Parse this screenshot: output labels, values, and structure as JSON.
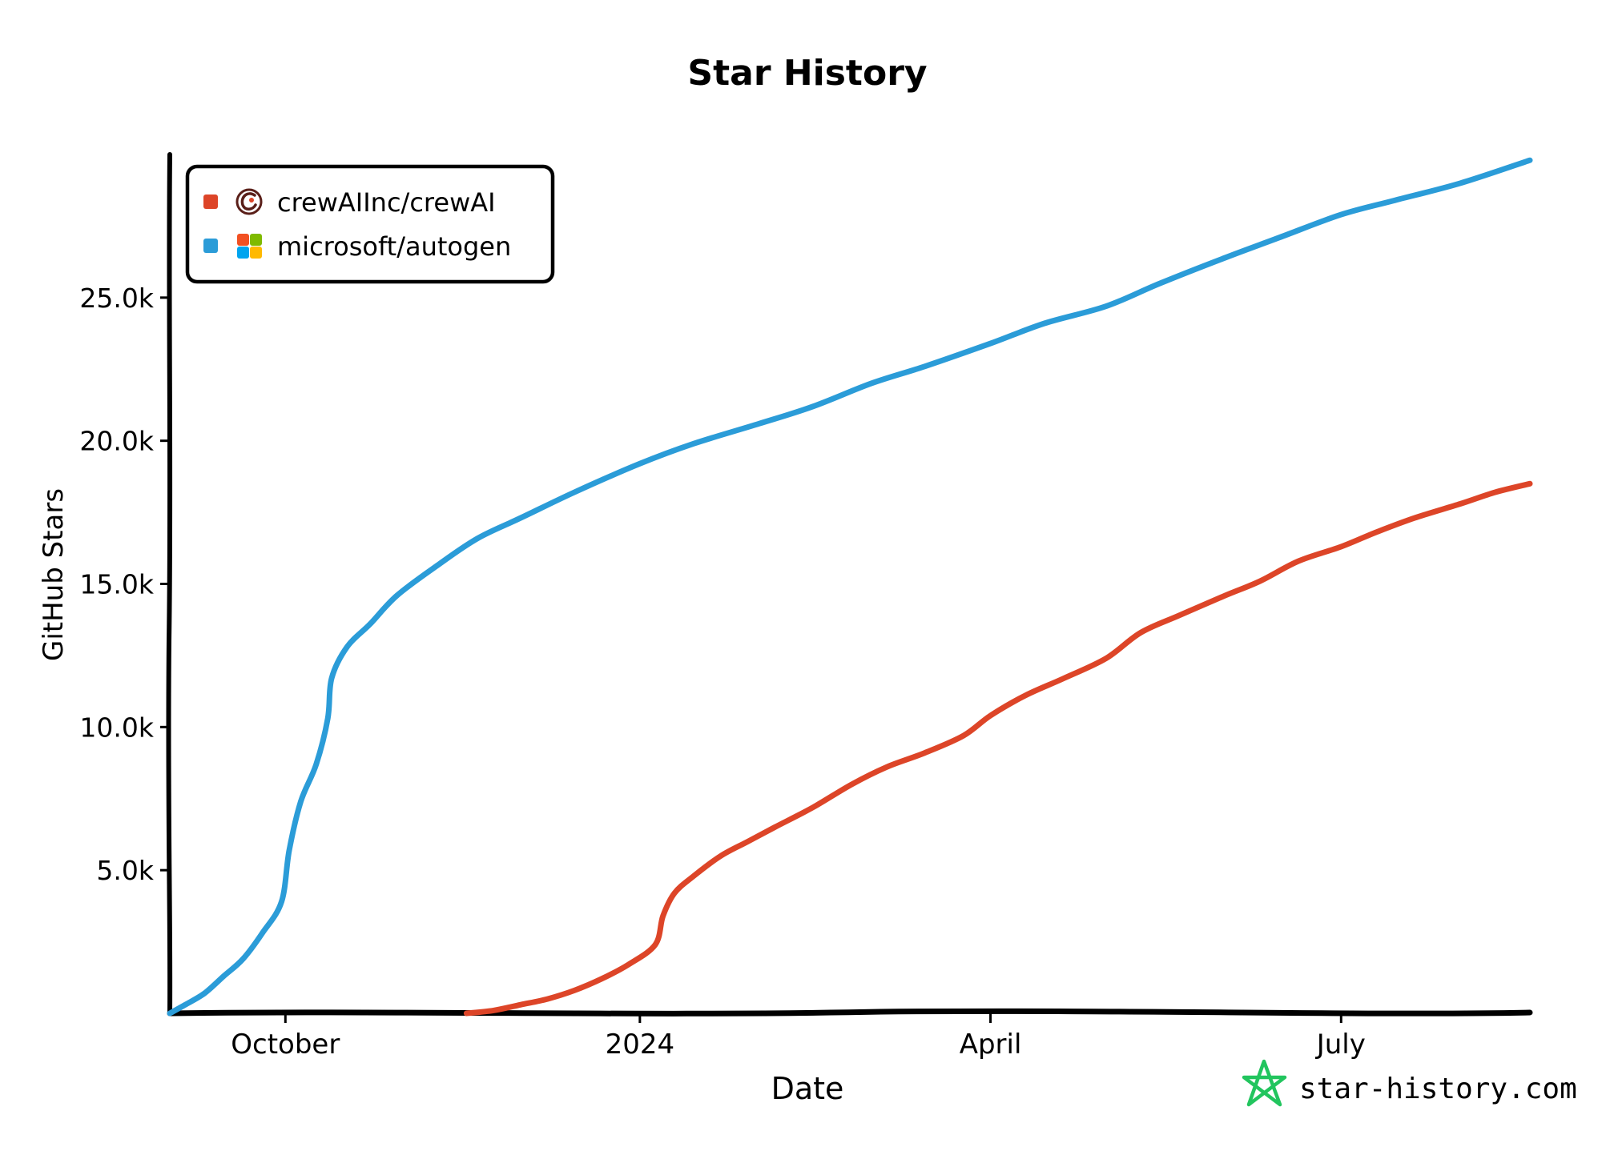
{
  "chart_data": {
    "type": "line",
    "title": "Star History",
    "xlabel": "Date",
    "ylabel": "GitHub Stars",
    "x_ticks": [
      "October",
      "2024",
      "April",
      "July"
    ],
    "x_tick_dates": [
      "2023-10-01",
      "2024-01-01",
      "2024-04-01",
      "2024-07-01"
    ],
    "y_ticks": [
      5000,
      10000,
      15000,
      20000,
      25000
    ],
    "y_tick_labels": [
      "5.0k",
      "10.0k",
      "15.0k",
      "20.0k",
      "25.0k"
    ],
    "xlim": [
      "2023-09-01",
      "2024-08-19"
    ],
    "ylim": [
      0,
      30000
    ],
    "legend_position": "top-left",
    "grid": false,
    "series": [
      {
        "name": "crewAIInc/crewAI",
        "color": "#dd4528",
        "icon": "crewai-logo-icon",
        "points": [
          [
            "2023-11-17",
            0
          ],
          [
            "2023-11-24",
            100
          ],
          [
            "2023-12-01",
            300
          ],
          [
            "2023-12-08",
            500
          ],
          [
            "2023-12-15",
            800
          ],
          [
            "2023-12-22",
            1200
          ],
          [
            "2023-12-29",
            1700
          ],
          [
            "2024-01-05",
            2400
          ],
          [
            "2024-01-07",
            3400
          ],
          [
            "2024-01-10",
            4200
          ],
          [
            "2024-01-15",
            4800
          ],
          [
            "2024-01-22",
            5500
          ],
          [
            "2024-01-29",
            6000
          ],
          [
            "2024-02-05",
            6500
          ],
          [
            "2024-02-15",
            7200
          ],
          [
            "2024-02-25",
            8000
          ],
          [
            "2024-03-05",
            8600
          ],
          [
            "2024-03-15",
            9100
          ],
          [
            "2024-03-25",
            9700
          ],
          [
            "2024-04-01",
            10400
          ],
          [
            "2024-04-10",
            11100
          ],
          [
            "2024-04-20",
            11700
          ],
          [
            "2024-05-01",
            12400
          ],
          [
            "2024-05-10",
            13300
          ],
          [
            "2024-05-20",
            13900
          ],
          [
            "2024-06-01",
            14600
          ],
          [
            "2024-06-10",
            15100
          ],
          [
            "2024-06-20",
            15800
          ],
          [
            "2024-07-01",
            16300
          ],
          [
            "2024-07-10",
            16800
          ],
          [
            "2024-07-20",
            17300
          ],
          [
            "2024-08-01",
            17800
          ],
          [
            "2024-08-10",
            18200
          ],
          [
            "2024-08-19",
            18500
          ]
        ]
      },
      {
        "name": "microsoft/autogen",
        "color": "#2b9cd8",
        "icon": "microsoft-logo-icon",
        "points": [
          [
            "2023-09-01",
            0
          ],
          [
            "2023-09-05",
            300
          ],
          [
            "2023-09-10",
            700
          ],
          [
            "2023-09-15",
            1300
          ],
          [
            "2023-09-20",
            1900
          ],
          [
            "2023-09-25",
            2800
          ],
          [
            "2023-09-30",
            3900
          ],
          [
            "2023-10-02",
            5700
          ],
          [
            "2023-10-05",
            7400
          ],
          [
            "2023-10-09",
            8700
          ],
          [
            "2023-10-12",
            10300
          ],
          [
            "2023-10-13",
            11700
          ],
          [
            "2023-10-17",
            12800
          ],
          [
            "2023-10-23",
            13600
          ],
          [
            "2023-10-30",
            14600
          ],
          [
            "2023-11-10",
            15700
          ],
          [
            "2023-11-20",
            16600
          ],
          [
            "2023-12-01",
            17300
          ],
          [
            "2023-12-15",
            18200
          ],
          [
            "2024-01-01",
            19200
          ],
          [
            "2024-01-15",
            19900
          ],
          [
            "2024-02-01",
            20600
          ],
          [
            "2024-02-15",
            21200
          ],
          [
            "2024-03-01",
            22000
          ],
          [
            "2024-03-15",
            22600
          ],
          [
            "2024-04-01",
            23400
          ],
          [
            "2024-04-15",
            24100
          ],
          [
            "2024-05-01",
            24700
          ],
          [
            "2024-05-15",
            25500
          ],
          [
            "2024-06-01",
            26400
          ],
          [
            "2024-06-15",
            27100
          ],
          [
            "2024-07-01",
            27900
          ],
          [
            "2024-07-15",
            28400
          ],
          [
            "2024-08-01",
            29000
          ],
          [
            "2024-08-19",
            29800
          ]
        ]
      }
    ]
  },
  "watermark": {
    "text": "star-history.com",
    "icon": "star-history-logo-icon",
    "color": "#22c55e"
  }
}
